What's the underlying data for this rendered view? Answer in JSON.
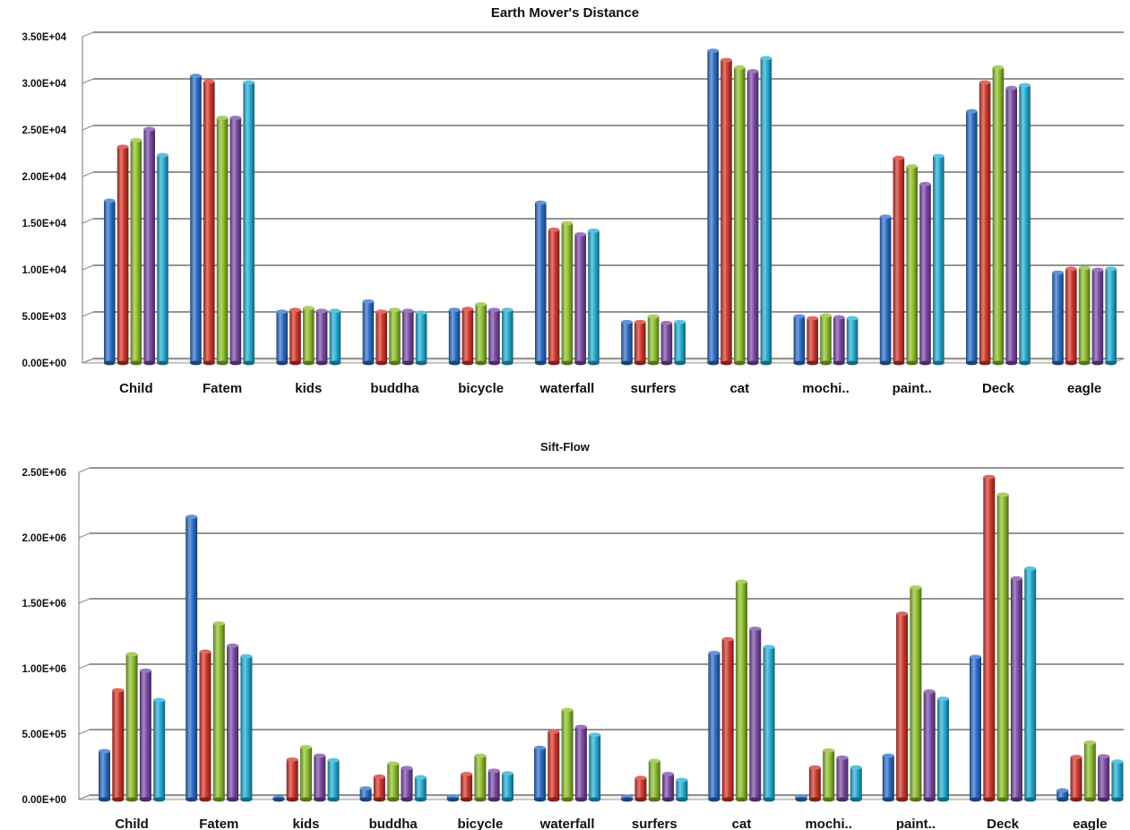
{
  "chart_data": [
    {
      "type": "bar",
      "title": "Earth Mover's Distance",
      "categories": [
        "Child",
        "Fatem",
        "kids",
        "buddha",
        "bicycle",
        "waterfall",
        "surfers",
        "cat",
        "mochi..",
        "paint..",
        "Deck",
        "eagle"
      ],
      "series": [
        {
          "color": "#2e6fc8",
          "values": [
            17400,
            30800,
            5500,
            6600,
            5700,
            17200,
            4400,
            33500,
            5000,
            15700,
            27000,
            9700
          ]
        },
        {
          "color": "#d2382e",
          "values": [
            23200,
            30200,
            5700,
            5500,
            5800,
            14300,
            4400,
            32500,
            4800,
            22000,
            30100,
            10100
          ]
        },
        {
          "color": "#8fbf30",
          "values": [
            23900,
            26300,
            5900,
            5700,
            6300,
            15000,
            5000,
            31700,
            5100,
            21100,
            31700,
            10200
          ]
        },
        {
          "color": "#7a4ba6",
          "values": [
            25100,
            26300,
            5600,
            5600,
            5700,
            13800,
            4300,
            31300,
            4900,
            19200,
            29500,
            10000
          ]
        },
        {
          "color": "#26aed3",
          "values": [
            22300,
            30100,
            5600,
            5400,
            5700,
            14200,
            4400,
            32700,
            4800,
            22200,
            29800,
            10100
          ]
        }
      ],
      "yticks": [
        "0.00E+00",
        "5.00E+03",
        "1.00E+04",
        "1.50E+04",
        "2.00E+04",
        "2.50E+04",
        "3.00E+04",
        "3.50E+04"
      ],
      "ylim": [
        0,
        35000
      ],
      "grid": true
    },
    {
      "type": "bar",
      "title": "Sift-Flow",
      "categories": [
        "Child",
        "Fatem",
        "kids",
        "buddha",
        "bicycle",
        "waterfall",
        "surfers",
        "cat",
        "mochi..",
        "paint..",
        "Deck",
        "eagle"
      ],
      "series": [
        {
          "color": "#2e6fc8",
          "values": [
            370000,
            2160000,
            15000,
            85000,
            25000,
            395000,
            20000,
            1120000,
            25000,
            335000,
            1090000,
            70000
          ]
        },
        {
          "color": "#d2382e",
          "values": [
            835000,
            1130000,
            305000,
            175000,
            195000,
            520000,
            165000,
            1225000,
            245000,
            1420000,
            2465000,
            325000
          ]
        },
        {
          "color": "#8fbf30",
          "values": [
            1110000,
            1345000,
            400000,
            275000,
            335000,
            685000,
            295000,
            1665000,
            375000,
            1620000,
            2330000,
            435000
          ]
        },
        {
          "color": "#7a4ba6",
          "values": [
            985000,
            1175000,
            335000,
            240000,
            220000,
            555000,
            195000,
            1305000,
            320000,
            825000,
            1690000,
            330000
          ]
        },
        {
          "color": "#26aed3",
          "values": [
            760000,
            1095000,
            300000,
            170000,
            200000,
            495000,
            150000,
            1165000,
            245000,
            770000,
            1765000,
            290000
          ]
        }
      ],
      "yticks": [
        "0.00E+00",
        "5.00E+05",
        "1.00E+06",
        "1.50E+06",
        "2.00E+06",
        "2.50E+06"
      ],
      "ylim": [
        0,
        2500000
      ],
      "grid": true
    }
  ]
}
